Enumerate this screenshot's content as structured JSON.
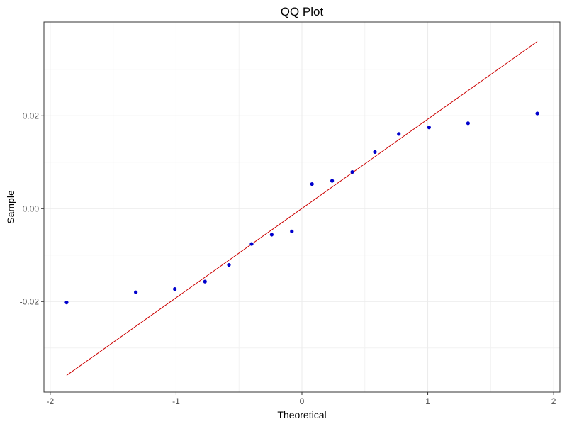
{
  "chart_data": {
    "type": "scatter",
    "title": "QQ Plot",
    "xlabel": "Theoretical",
    "ylabel": "Sample",
    "xlim": [
      -2.05,
      2.05
    ],
    "ylim": [
      -0.0395,
      0.0402
    ],
    "x_ticks": [
      -2,
      -1,
      0,
      1,
      2
    ],
    "x_tick_labels": [
      "-2",
      "-1",
      "0",
      "1",
      "2"
    ],
    "y_ticks": [
      -0.02,
      0.0,
      0.02
    ],
    "y_tick_labels": [
      "-0.02",
      "0.00",
      "0.02"
    ],
    "grid": true,
    "legend": "none",
    "series": [
      {
        "type": "points",
        "color": "#0000cc",
        "x": [
          -1.87,
          -1.32,
          -1.01,
          -0.77,
          -0.58,
          -0.4,
          -0.24,
          -0.08,
          0.08,
          0.24,
          0.4,
          0.58,
          0.77,
          1.01,
          1.32,
          1.87
        ],
        "y": [
          -0.0202,
          -0.018,
          -0.0173,
          -0.0157,
          -0.0121,
          -0.0076,
          -0.0056,
          -0.0049,
          0.0053,
          0.006,
          0.0079,
          0.0122,
          0.0161,
          0.0175,
          0.0184,
          0.0205
        ]
      },
      {
        "type": "reference-line",
        "color": "#cc0000",
        "x": [
          -1.87,
          1.87
        ],
        "y": [
          -0.0359,
          0.036
        ]
      }
    ]
  },
  "colors": {
    "points": "#0000cc",
    "line": "#cc0000",
    "grid": "#ebebeb",
    "panel_border": "#333333"
  }
}
